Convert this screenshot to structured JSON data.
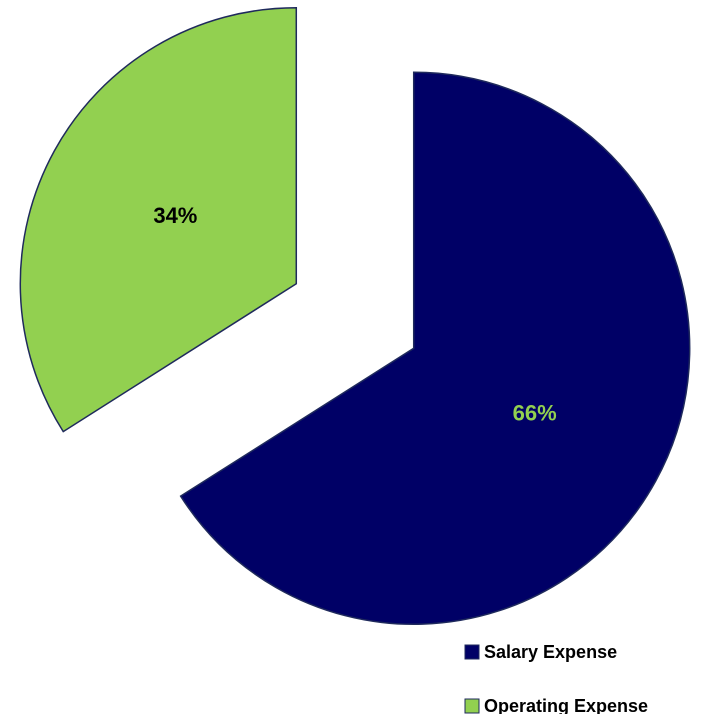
{
  "chart_data": {
    "type": "pie",
    "categories": [
      "Salary Expense",
      "Operating Expense"
    ],
    "values": [
      66,
      34
    ],
    "value_labels": [
      "66%",
      "34%"
    ],
    "colors": [
      "#000066",
      "#92d050"
    ],
    "label_colors": [
      "#92d050",
      "#000000"
    ],
    "legend": "bottom-right"
  }
}
